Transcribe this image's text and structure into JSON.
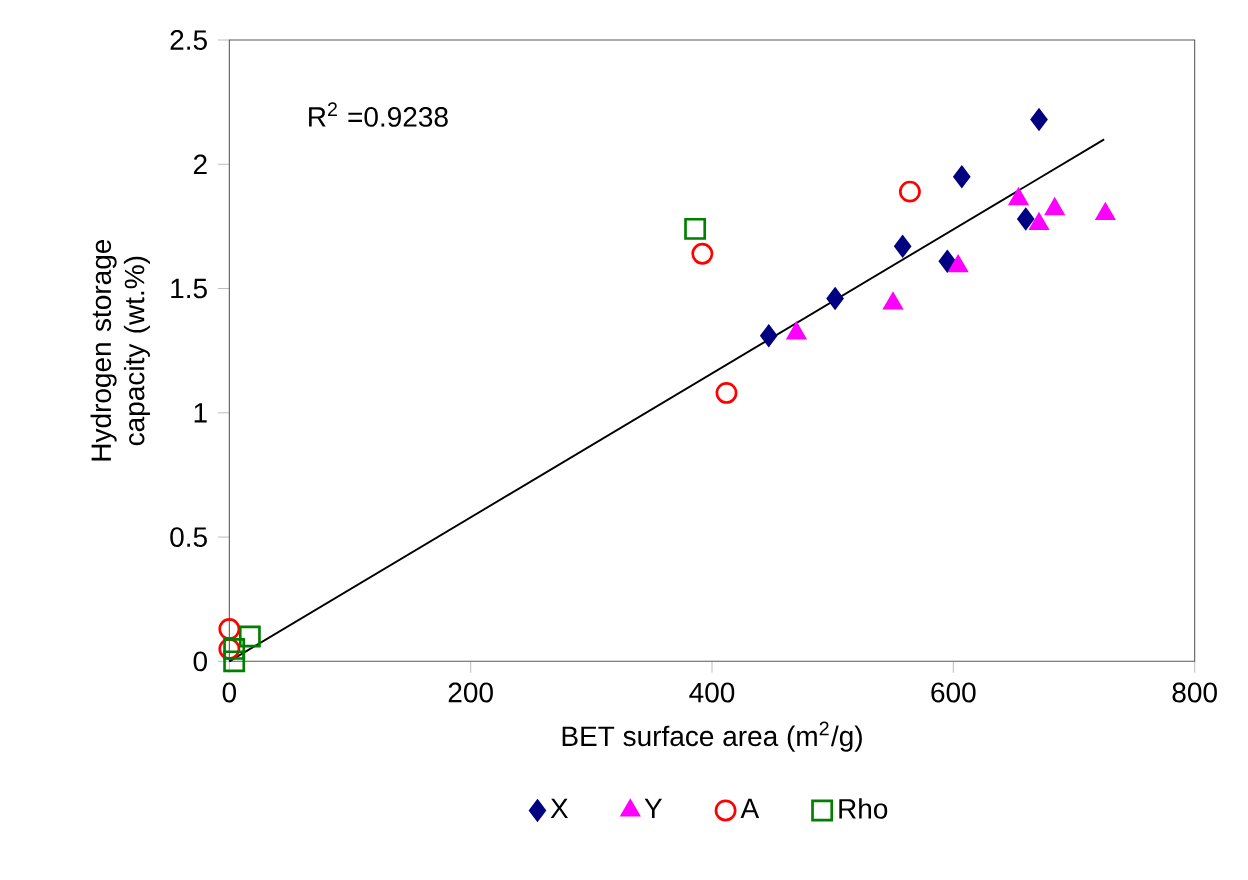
{
  "chart_data": {
    "type": "scatter",
    "xlabel": "BET surface area (m$^{2}$/g)",
    "ylabel": "Hydrogen storage capacity (wt.%)",
    "xlim": [
      0,
      800
    ],
    "ylim": [
      0,
      2.5
    ],
    "xticks": [
      0,
      200,
      400,
      600,
      800
    ],
    "yticks": [
      0,
      0.5,
      1,
      1.5,
      2,
      2.5
    ],
    "legend": "bottom",
    "grid": false,
    "annotations": [
      {
        "text": "R$^{2}$ =0.9238"
      }
    ],
    "series": [
      {
        "name": "X",
        "color": "#000080",
        "marker": "diamond",
        "x": [
          447,
          502,
          558,
          595,
          607,
          660,
          671
        ],
        "values": [
          1.31,
          1.46,
          1.67,
          1.61,
          1.95,
          1.78,
          2.18
        ]
      },
      {
        "name": "Y",
        "color": "#ff00ff",
        "marker": "triangle",
        "x": [
          470,
          550,
          604,
          654,
          671,
          684,
          726
        ],
        "values": [
          1.32,
          1.44,
          1.59,
          1.86,
          1.76,
          1.82,
          1.8
        ]
      },
      {
        "name": "A",
        "color": "#ff0000",
        "marker": "circle",
        "x": [
          392,
          412,
          564,
          0,
          0
        ],
        "values": [
          1.64,
          1.08,
          1.89,
          0.13,
          0.05
        ]
      },
      {
        "name": "Rho",
        "color": "#008000",
        "marker": "square",
        "x": [
          386,
          17,
          4,
          4
        ],
        "values": [
          1.74,
          0.1,
          0.05,
          0.0
        ]
      },
      {
        "type": "line",
        "color": "#000000",
        "marker": "none",
        "x": [
          0,
          725
        ],
        "values": [
          0,
          2.1
        ]
      }
    ]
  }
}
